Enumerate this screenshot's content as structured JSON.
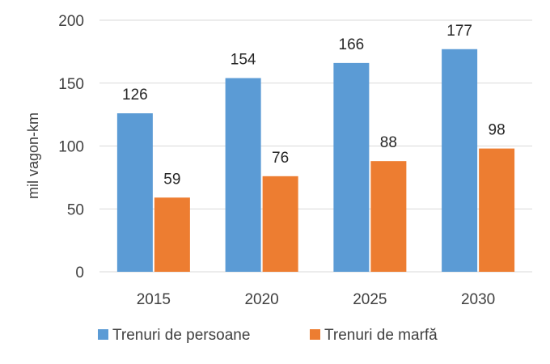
{
  "chart_data": {
    "type": "bar",
    "title": "",
    "xlabel": "",
    "ylabel": "mil vagon-km",
    "ylim": [
      0,
      200
    ],
    "yticks": [
      0,
      50,
      100,
      150,
      200
    ],
    "grid": true,
    "legend_position": "bottom",
    "categories": [
      "2015",
      "2020",
      "2025",
      "2030"
    ],
    "series": [
      {
        "name": "Trenuri de persoane",
        "color": "#5b9bd5",
        "values": [
          126,
          154,
          166,
          177
        ]
      },
      {
        "name": "Trenuri de marfă",
        "color": "#ed7d31",
        "values": [
          59,
          76,
          88,
          98
        ]
      }
    ]
  }
}
